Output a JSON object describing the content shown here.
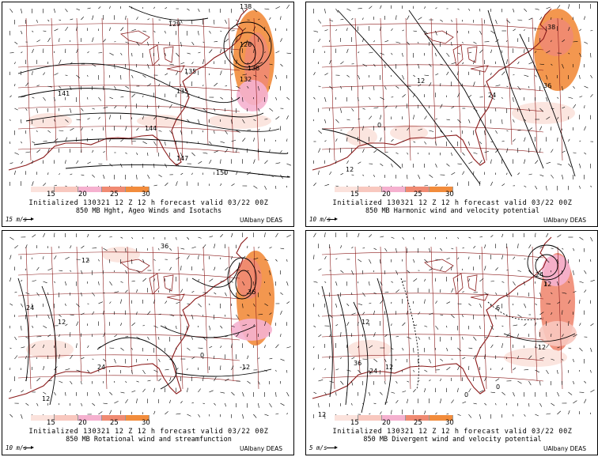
{
  "colorbar": {
    "ticks": [
      "15",
      "20",
      "25",
      "30"
    ],
    "colors": [
      "#fbe2dc",
      "#f8c8bf",
      "#f5b1cf",
      "#f08a72",
      "#f28c3c"
    ]
  },
  "common": {
    "init_line": "Initialized 130321 12 Z  12 h forecast valid 03/22 00Z",
    "credit": "UAlbany DEAS"
  },
  "panels": [
    {
      "subtitle": "850 MB Hght, Ageo Winds and Isotachs",
      "scale": "15 m/s",
      "contour_labels": [
        "138",
        "129",
        "126",
        "132",
        "141",
        "135",
        "135",
        "138",
        "144",
        "147",
        "150"
      ]
    },
    {
      "subtitle": "850 MB Harmonic wind and velocity potential",
      "scale": "10 m/s",
      "contour_labels": [
        "38",
        "36",
        "24",
        "12",
        "0",
        "12"
      ]
    },
    {
      "subtitle": "850 MB Rotational wind and streamfunction",
      "scale": "10 m/s",
      "contour_labels": [
        "36",
        "12",
        "24",
        "36",
        "12",
        "0",
        "-12",
        "24",
        "12"
      ]
    },
    {
      "subtitle": "850 MB Divergent wind and velocity potential",
      "scale": "5 m/s",
      "contour_labels": [
        "24",
        "12",
        "6",
        "-12",
        "12",
        "36",
        "24",
        "12",
        "0",
        "12",
        "0"
      ]
    }
  ],
  "panel_names": [
    "height-ageo-isotach-panel",
    "harmonic-wind-panel",
    "rotational-wind-panel",
    "divergent-wind-panel"
  ]
}
